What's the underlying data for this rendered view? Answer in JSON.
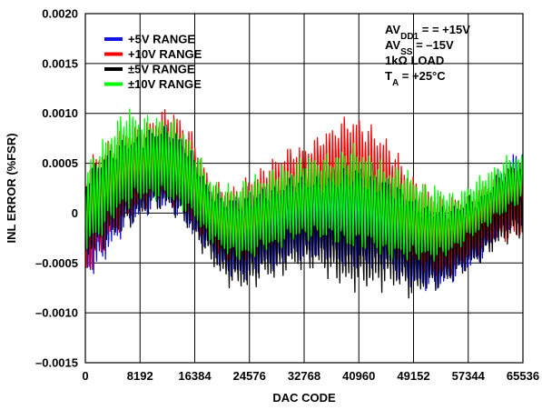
{
  "chart_data": {
    "type": "line",
    "xlabel": "DAC CODE",
    "ylabel": "INL ERROR (%FSR)",
    "xlim": [
      0,
      65536
    ],
    "ylim": [
      -0.0015,
      0.002
    ],
    "x_ticks": [
      0,
      8192,
      16384,
      24576,
      32768,
      40960,
      49152,
      57344,
      65536
    ],
    "x_tick_labels": [
      "0",
      "8192",
      "16384",
      "24576",
      "32768",
      "40960",
      "49152",
      "57344",
      "65536"
    ],
    "y_ticks": [
      -0.0015,
      -0.001,
      -0.0005,
      0,
      0.0005,
      0.001,
      0.0015,
      0.002
    ],
    "y_tick_labels": [
      "–0.0015",
      "–0.0010",
      "–0.0005",
      "0",
      "0.0005",
      "0.0010",
      "0.0015",
      "0.0020"
    ],
    "grid": true,
    "legend": {
      "position": "top-left",
      "entries": [
        {
          "label": "+5V RANGE",
          "color": "#1414e6"
        },
        {
          "label": "+10V RANGE",
          "color": "#ff0000"
        },
        {
          "label": "±5V RANGE",
          "color": "#000000"
        },
        {
          "label": "±10V RANGE",
          "color": "#00ff00"
        }
      ]
    },
    "annotation": {
      "position": "top-right",
      "lines": [
        {
          "parts": [
            {
              "t": "AV"
            },
            {
              "t": "DD1",
              "sub": true
            },
            {
              "t": " = = +15V"
            }
          ]
        },
        {
          "parts": [
            {
              "t": "AV"
            },
            {
              "t": "SS",
              "sub": true
            },
            {
              "t": " = –15V"
            }
          ]
        },
        {
          "parts": [
            {
              "t": "1kΩ LOAD"
            }
          ]
        },
        {
          "parts": [
            {
              "t": "T"
            },
            {
              "t": "A",
              "sub": true
            },
            {
              "t": " = +25°C"
            }
          ]
        }
      ]
    },
    "series": [
      {
        "name": "+5V RANGE",
        "color": "#1414e6",
        "x": [
          0,
          2048,
          4096,
          6144,
          8192,
          10240,
          12288,
          14336,
          16384,
          18432,
          20480,
          22528,
          24576,
          26624,
          28672,
          30720,
          32768,
          34816,
          36864,
          38912,
          40960,
          43008,
          45056,
          47104,
          49152,
          51200,
          53248,
          55296,
          57344,
          59392,
          61440,
          63488,
          65536
        ],
        "upper": [
          0.0003,
          0.0005,
          0.0006,
          0.0008,
          0.0008,
          0.0008,
          0.0009,
          0.0008,
          0.0006,
          0.0003,
          0.0002,
          0.0002,
          0.0003,
          0.0003,
          0.0003,
          0.0004,
          0.0004,
          0.0004,
          0.0005,
          0.0005,
          0.0005,
          0.0005,
          0.0004,
          0.0003,
          0.0002,
          0.0001,
          0.0001,
          0.0001,
          0.0001,
          0.0002,
          0.0004,
          0.0006,
          0.0007
        ],
        "lower": [
          -0.0007,
          -0.0006,
          -0.0004,
          -0.0002,
          -0.0001,
          0.0,
          0.0,
          -0.0001,
          -0.0003,
          -0.0004,
          -0.0006,
          -0.0007,
          -0.0007,
          -0.0006,
          -0.0006,
          -0.0005,
          -0.0005,
          -0.0005,
          -0.0005,
          -0.0006,
          -0.0006,
          -0.0006,
          -0.0006,
          -0.0007,
          -0.0008,
          -0.0008,
          -0.0008,
          -0.0007,
          -0.0006,
          -0.0005,
          -0.0003,
          -0.0002,
          -0.0002
        ]
      },
      {
        "name": "+10V RANGE",
        "color": "#ff0000",
        "x": [
          0,
          2048,
          4096,
          6144,
          8192,
          10240,
          12288,
          14336,
          16384,
          18432,
          20480,
          22528,
          24576,
          26624,
          28672,
          30720,
          32768,
          34816,
          36864,
          38912,
          40960,
          43008,
          45056,
          47104,
          49152,
          51200,
          53248,
          55296,
          57344,
          59392,
          61440,
          63488,
          65536
        ],
        "upper": [
          0.0005,
          0.0007,
          0.0008,
          0.0009,
          0.0009,
          0.001,
          0.0011,
          0.001,
          0.0008,
          0.0004,
          0.0003,
          0.0003,
          0.0004,
          0.0005,
          0.0006,
          0.0007,
          0.0007,
          0.0008,
          0.0009,
          0.001,
          0.001,
          0.0009,
          0.0008,
          0.0006,
          0.0004,
          0.0003,
          0.0002,
          0.0002,
          0.0002,
          0.0003,
          0.0004,
          0.0005,
          0.0006
        ],
        "lower": [
          -0.0007,
          -0.0005,
          -0.0003,
          -0.0001,
          0.0,
          0.0001,
          0.0001,
          0.0,
          -0.0002,
          -0.0003,
          -0.0005,
          -0.0005,
          -0.0005,
          -0.0004,
          -0.0003,
          -0.0002,
          -0.0002,
          -0.0001,
          -0.0001,
          -0.0001,
          -0.0002,
          -0.0003,
          -0.0004,
          -0.0005,
          -0.0006,
          -0.0006,
          -0.0007,
          -0.0006,
          -0.0005,
          -0.0004,
          -0.0003,
          -0.0003,
          -0.0003
        ]
      },
      {
        "name": "±5V RANGE",
        "color": "#000000",
        "x": [
          0,
          2048,
          4096,
          6144,
          8192,
          10240,
          12288,
          14336,
          16384,
          18432,
          20480,
          22528,
          24576,
          26624,
          28672,
          30720,
          32768,
          34816,
          36864,
          38912,
          40960,
          43008,
          45056,
          47104,
          49152,
          51200,
          53248,
          55296,
          57344,
          59392,
          61440,
          63488,
          65536
        ],
        "upper": [
          0.0004,
          0.0006,
          0.0007,
          0.0008,
          0.0008,
          0.0009,
          0.0009,
          0.0008,
          0.0006,
          0.0003,
          0.0002,
          0.0002,
          0.0002,
          0.0003,
          0.0003,
          0.0004,
          0.0004,
          0.0004,
          0.0004,
          0.0005,
          0.0005,
          0.0004,
          0.0004,
          0.0003,
          0.0002,
          0.0001,
          0.0001,
          0.0001,
          0.0002,
          0.0002,
          0.0004,
          0.0005,
          0.0006
        ],
        "lower": [
          -0.0005,
          -0.0004,
          -0.0003,
          -0.0002,
          -0.0001,
          0.0,
          0.0,
          -0.0001,
          -0.0003,
          -0.0005,
          -0.0007,
          -0.0008,
          -0.0008,
          -0.0007,
          -0.0007,
          -0.0006,
          -0.0006,
          -0.0006,
          -0.0007,
          -0.0008,
          -0.0008,
          -0.0008,
          -0.0008,
          -0.0008,
          -0.0009,
          -0.0008,
          -0.0008,
          -0.0007,
          -0.0006,
          -0.0005,
          -0.0004,
          -0.0003,
          -0.0003
        ]
      },
      {
        "name": "±10V RANGE",
        "color": "#00ff00",
        "x": [
          0,
          2048,
          4096,
          6144,
          8192,
          10240,
          12288,
          14336,
          16384,
          18432,
          20480,
          22528,
          24576,
          26624,
          28672,
          30720,
          32768,
          34816,
          36864,
          38912,
          40960,
          43008,
          45056,
          47104,
          49152,
          51200,
          53248,
          55296,
          57344,
          59392,
          61440,
          63488,
          65536
        ],
        "upper": [
          0.0005,
          0.0007,
          0.0009,
          0.0011,
          0.001,
          0.001,
          0.001,
          0.0009,
          0.0007,
          0.0004,
          0.0003,
          0.0003,
          0.0004,
          0.0004,
          0.0005,
          0.0005,
          0.0006,
          0.0006,
          0.0006,
          0.0007,
          0.0007,
          0.0006,
          0.0005,
          0.0005,
          0.0004,
          0.0003,
          0.0003,
          0.0002,
          0.0003,
          0.0004,
          0.0005,
          0.0006,
          0.0006
        ],
        "lower": [
          -0.0004,
          -0.0003,
          -0.0001,
          0.0,
          0.0001,
          0.0001,
          0.0001,
          0.0,
          -0.0001,
          -0.0003,
          -0.0004,
          -0.0005,
          -0.0005,
          -0.0004,
          -0.0004,
          -0.0003,
          -0.0003,
          -0.0003,
          -0.0003,
          -0.0004,
          -0.0004,
          -0.0004,
          -0.0005,
          -0.0005,
          -0.0005,
          -0.0005,
          -0.0005,
          -0.0004,
          -0.0003,
          -0.0002,
          -0.0001,
          0.0,
          0.0001
        ]
      }
    ]
  }
}
